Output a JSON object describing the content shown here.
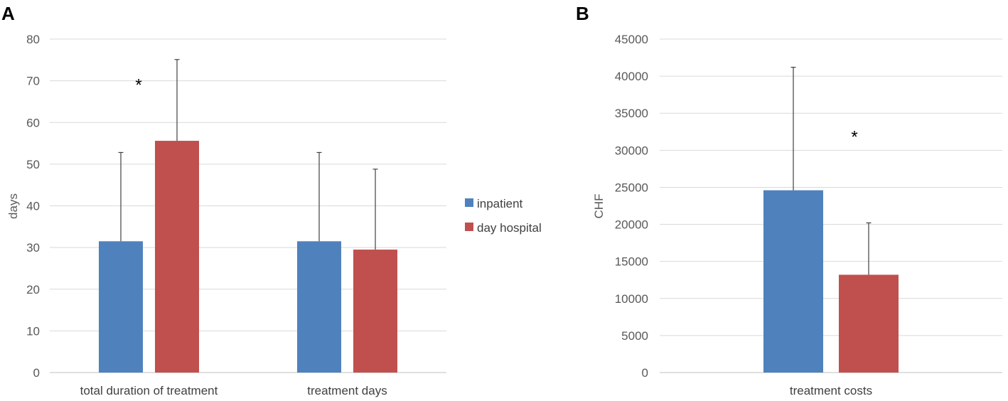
{
  "panels": {
    "a_label": "A",
    "b_label": "B"
  },
  "legend": {
    "items": [
      {
        "label": "inpatient",
        "color": "#4f81bd"
      },
      {
        "label": "day hospital",
        "color": "#c0504d"
      }
    ]
  },
  "chart_data": [
    {
      "panel": "A",
      "type": "bar",
      "ylabel": "days",
      "ylim": [
        0,
        80
      ],
      "yticks": [
        "0",
        "10",
        "20",
        "30",
        "40",
        "50",
        "60",
        "70",
        "80"
      ],
      "categories": [
        "total duration of treatment",
        "treatment days"
      ],
      "series": [
        {
          "name": "inpatient",
          "values": [
            31.5,
            31.5
          ],
          "errors": [
            21.3,
            21.3
          ]
        },
        {
          "name": "day hospital",
          "values": [
            55.6,
            29.5
          ],
          "errors": [
            19.5,
            19.3
          ]
        }
      ],
      "annotations": [
        {
          "text": "*",
          "category": 0
        }
      ],
      "grid": true
    },
    {
      "panel": "B",
      "type": "bar",
      "ylabel": "CHF",
      "ylim": [
        0,
        45000
      ],
      "yticks": [
        "0",
        "5000",
        "10000",
        "15000",
        "20000",
        "25000",
        "30000",
        "35000",
        "40000",
        "45000"
      ],
      "categories": [
        "treatment costs"
      ],
      "series": [
        {
          "name": "inpatient",
          "values": [
            24600
          ],
          "errors": [
            16600
          ]
        },
        {
          "name": "day hospital",
          "values": [
            13200
          ],
          "errors": [
            7000
          ]
        }
      ],
      "annotations": [
        {
          "text": "*",
          "category": 0
        }
      ],
      "grid": true
    }
  ]
}
